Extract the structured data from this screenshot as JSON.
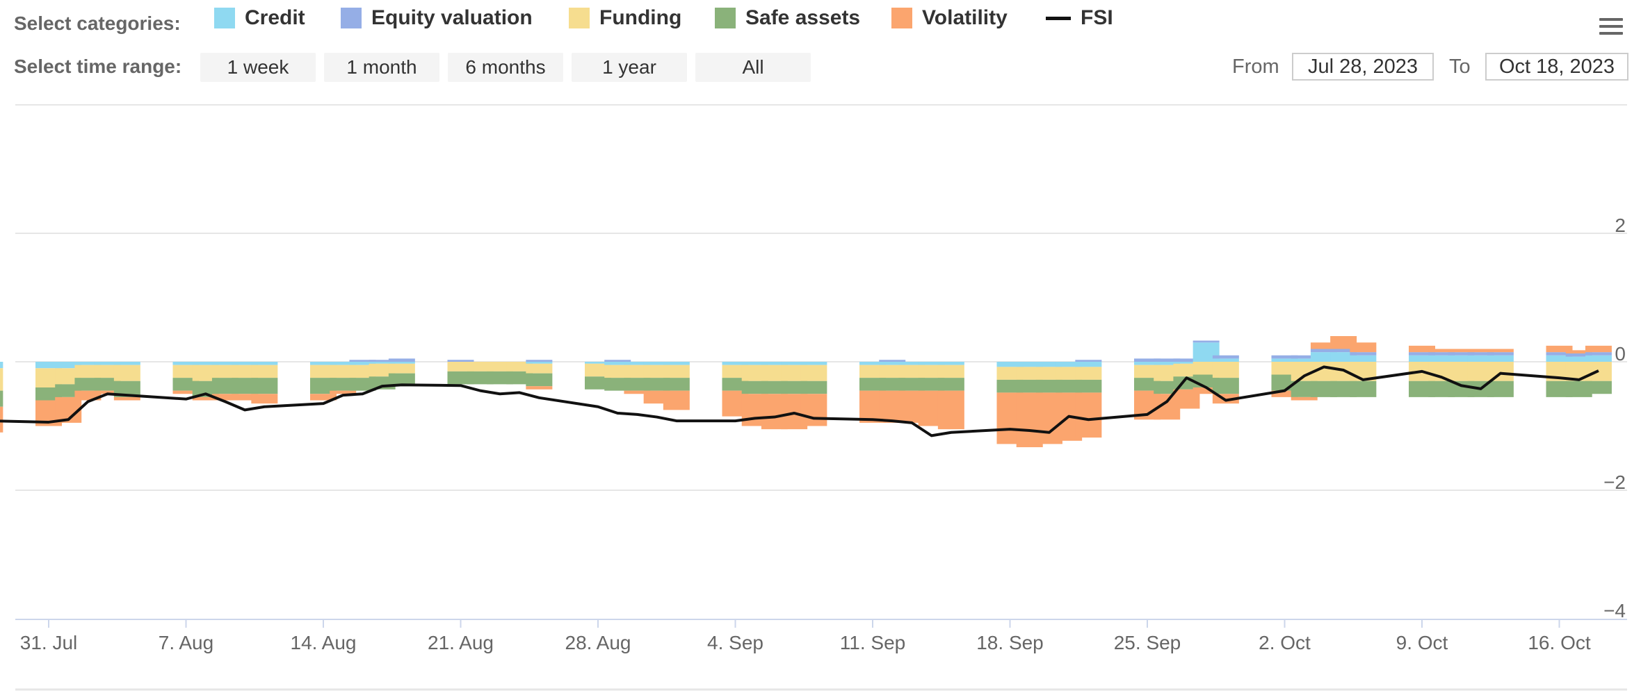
{
  "controls": {
    "categories_label": "Select categories:",
    "time_range_label": "Select time range:",
    "range_buttons": [
      "1 week",
      "1 month",
      "6 months",
      "1 year",
      "All"
    ],
    "from_label": "From",
    "to_label": "To",
    "from_value": "Jul 28, 2023",
    "to_value": "Oct 18, 2023",
    "menu_icon": "hamburger-menu-icon"
  },
  "legend": [
    {
      "name": "Credit",
      "color": "#8fd9f1",
      "kind": "area"
    },
    {
      "name": "Equity valuation",
      "color": "#95aee6",
      "kind": "area"
    },
    {
      "name": "Funding",
      "color": "#f6dd8f",
      "kind": "area"
    },
    {
      "name": "Safe assets",
      "color": "#8ab27a",
      "kind": "area"
    },
    {
      "name": "Volatility",
      "color": "#fba56e",
      "kind": "area"
    },
    {
      "name": "FSI",
      "color": "#111111",
      "kind": "line"
    }
  ],
  "chart_data": {
    "type": "bar",
    "stacked": true,
    "x": [
      "Jul 28",
      "Jul 31",
      "Aug 1",
      "Aug 2",
      "Aug 3",
      "Aug 4",
      "Aug 7",
      "Aug 8",
      "Aug 9",
      "Aug 10",
      "Aug 11",
      "Aug 14",
      "Aug 15",
      "Aug 16",
      "Aug 17",
      "Aug 18",
      "Aug 21",
      "Aug 22",
      "Aug 23",
      "Aug 24",
      "Aug 25",
      "Aug 28",
      "Aug 29",
      "Aug 30",
      "Aug 31",
      "Sep 1",
      "Sep 4",
      "Sep 5",
      "Sep 6",
      "Sep 7",
      "Sep 8",
      "Sep 11",
      "Sep 12",
      "Sep 13",
      "Sep 14",
      "Sep 15",
      "Sep 18",
      "Sep 19",
      "Sep 20",
      "Sep 21",
      "Sep 22",
      "Sep 25",
      "Sep 26",
      "Sep 27",
      "Sep 28",
      "Sep 29",
      "Oct 2",
      "Oct 3",
      "Oct 4",
      "Oct 5",
      "Oct 6",
      "Oct 9",
      "Oct 10",
      "Oct 11",
      "Oct 12",
      "Oct 13",
      "Oct 16",
      "Oct 17",
      "Oct 18"
    ],
    "x_tick_labels": [
      "31. Jul",
      "7. Aug",
      "14. Aug",
      "21. Aug",
      "28. Aug",
      "4. Sep",
      "11. Sep",
      "18. Sep",
      "25. Sep",
      "2. Oct",
      "9. Oct",
      "16. Oct"
    ],
    "y_ticks": [
      "2",
      "0",
      "−2",
      "−4"
    ],
    "ylim": [
      -4,
      4
    ],
    "legend_position": "top",
    "grid": true,
    "series": [
      {
        "name": "Credit",
        "color": "#8fd9f1",
        "values": [
          -0.1,
          -0.1,
          -0.1,
          -0.05,
          -0.05,
          -0.05,
          -0.05,
          -0.05,
          -0.05,
          -0.05,
          -0.05,
          -0.05,
          -0.05,
          -0.05,
          -0.03,
          -0.03,
          0.0,
          0.0,
          0.0,
          0.0,
          -0.03,
          -0.03,
          -0.05,
          -0.05,
          -0.05,
          -0.05,
          -0.05,
          -0.05,
          -0.05,
          -0.05,
          -0.05,
          -0.05,
          -0.05,
          -0.05,
          -0.05,
          -0.05,
          -0.08,
          -0.08,
          -0.08,
          -0.08,
          -0.08,
          -0.05,
          -0.05,
          -0.03,
          0.3,
          0.05,
          0.05,
          0.05,
          0.15,
          0.15,
          0.1,
          0.1,
          0.1,
          0.1,
          0.1,
          0.1,
          0.1,
          0.08,
          0.1
        ]
      },
      {
        "name": "Equity valuation",
        "color": "#95aee6",
        "values": [
          0.0,
          0.0,
          0.0,
          0.0,
          0.0,
          0.0,
          0.0,
          0.0,
          0.0,
          0.0,
          0.0,
          0.0,
          0.0,
          0.03,
          0.03,
          0.05,
          0.03,
          0.0,
          0.0,
          0.0,
          0.03,
          0.0,
          0.03,
          0.0,
          0.0,
          0.0,
          0.0,
          0.0,
          0.0,
          0.0,
          0.0,
          0.0,
          0.03,
          0.0,
          0.0,
          0.0,
          0.0,
          0.0,
          0.0,
          0.0,
          0.03,
          0.05,
          0.05,
          0.05,
          0.03,
          0.05,
          0.05,
          0.05,
          0.05,
          0.05,
          0.05,
          0.05,
          0.05,
          0.05,
          0.05,
          0.05,
          0.05,
          0.05,
          0.05
        ]
      },
      {
        "name": "Funding",
        "color": "#f6dd8f",
        "values": [
          -0.35,
          -0.3,
          -0.25,
          -0.2,
          -0.2,
          -0.25,
          -0.2,
          -0.25,
          -0.2,
          -0.2,
          -0.2,
          -0.2,
          -0.2,
          -0.2,
          -0.2,
          -0.15,
          -0.15,
          -0.15,
          -0.15,
          -0.15,
          -0.15,
          -0.2,
          -0.2,
          -0.2,
          -0.2,
          -0.2,
          -0.2,
          -0.25,
          -0.25,
          -0.25,
          -0.25,
          -0.2,
          -0.2,
          -0.2,
          -0.2,
          -0.2,
          -0.2,
          -0.2,
          -0.2,
          -0.2,
          -0.2,
          -0.2,
          -0.25,
          -0.2,
          -0.2,
          -0.25,
          -0.2,
          -0.3,
          -0.3,
          -0.3,
          -0.3,
          -0.3,
          -0.3,
          -0.3,
          -0.3,
          -0.3,
          -0.3,
          -0.3,
          -0.3
        ]
      },
      {
        "name": "Safe assets",
        "color": "#8ab27a",
        "values": [
          -0.25,
          -0.2,
          -0.2,
          -0.2,
          -0.2,
          -0.25,
          -0.2,
          -0.25,
          -0.25,
          -0.25,
          -0.25,
          -0.25,
          -0.2,
          -0.2,
          -0.2,
          -0.2,
          -0.2,
          -0.2,
          -0.2,
          -0.2,
          -0.2,
          -0.2,
          -0.2,
          -0.2,
          -0.2,
          -0.2,
          -0.2,
          -0.2,
          -0.2,
          -0.2,
          -0.2,
          -0.2,
          -0.2,
          -0.2,
          -0.2,
          -0.2,
          -0.2,
          -0.2,
          -0.2,
          -0.2,
          -0.2,
          -0.2,
          -0.2,
          -0.2,
          -0.2,
          -0.25,
          -0.25,
          -0.25,
          -0.25,
          -0.25,
          -0.25,
          -0.25,
          -0.25,
          -0.25,
          -0.25,
          -0.25,
          -0.25,
          -0.25,
          -0.2
        ]
      },
      {
        "name": "Volatility",
        "color": "#fba56e",
        "values": [
          -0.4,
          -0.4,
          -0.4,
          -0.15,
          -0.05,
          -0.05,
          -0.05,
          -0.05,
          -0.1,
          -0.1,
          -0.15,
          -0.1,
          -0.05,
          0.0,
          0.0,
          0.0,
          0.0,
          0.0,
          0.0,
          0.0,
          -0.05,
          0.0,
          0.0,
          -0.05,
          -0.2,
          -0.3,
          -0.4,
          -0.5,
          -0.55,
          -0.55,
          -0.5,
          -0.5,
          -0.5,
          -0.5,
          -0.55,
          -0.6,
          -0.8,
          -0.85,
          -0.8,
          -0.75,
          -0.7,
          -0.45,
          -0.4,
          -0.3,
          -0.1,
          -0.15,
          -0.1,
          -0.05,
          0.1,
          0.2,
          0.15,
          0.1,
          0.05,
          0.05,
          0.05,
          0.05,
          0.1,
          0.05,
          0.1
        ]
      },
      {
        "name": "FSI",
        "color": "#111111",
        "type": "line",
        "values": [
          -0.92,
          -0.94,
          -0.9,
          -0.62,
          -0.5,
          -0.52,
          -0.58,
          -0.5,
          -0.62,
          -0.75,
          -0.7,
          -0.65,
          -0.52,
          -0.5,
          -0.38,
          -0.36,
          -0.37,
          -0.45,
          -0.5,
          -0.48,
          -0.56,
          -0.7,
          -0.8,
          -0.82,
          -0.86,
          -0.92,
          -0.92,
          -0.88,
          -0.86,
          -0.8,
          -0.88,
          -0.9,
          -0.92,
          -0.95,
          -1.15,
          -1.1,
          -1.05,
          -1.07,
          -1.1,
          -0.85,
          -0.9,
          -0.82,
          -0.62,
          -0.25,
          -0.4,
          -0.6,
          -0.45,
          -0.22,
          -0.08,
          -0.13,
          -0.28,
          -0.15,
          -0.24,
          -0.37,
          -0.42,
          -0.18,
          -0.25,
          -0.28,
          -0.14
        ]
      }
    ]
  }
}
